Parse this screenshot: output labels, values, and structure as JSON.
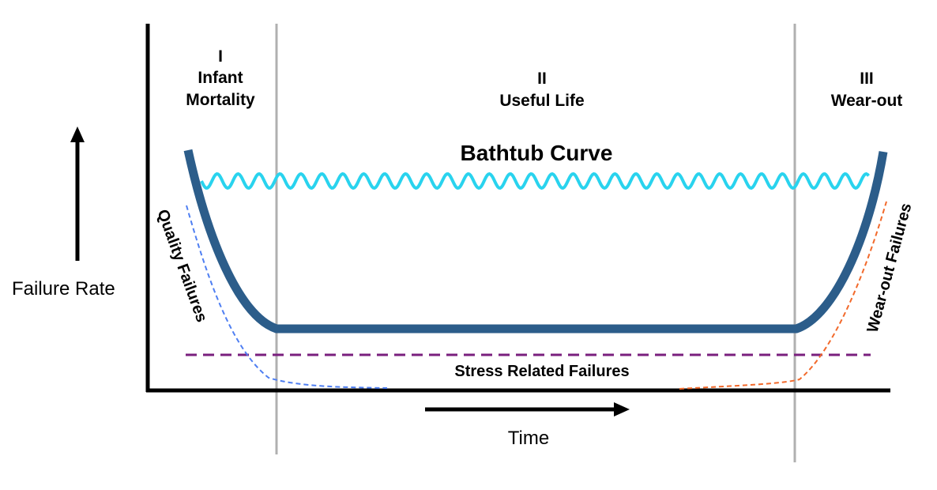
{
  "phases": [
    {
      "numeral": "I",
      "lines": [
        "Infant",
        "Mortality"
      ]
    },
    {
      "numeral": "II",
      "lines": [
        "Useful Life"
      ]
    },
    {
      "numeral": "III",
      "lines": [
        "Wear-out"
      ]
    }
  ],
  "curve_title": "Bathtub Curve",
  "y_axis_label": "Failure Rate",
  "x_axis_label": "Time",
  "labels": {
    "quality": "Quality Failures",
    "wearout": "Wear-out Failures",
    "stress": "Stress Related Failures"
  },
  "colors": {
    "bathtub_curve": "#2c5d8a",
    "wavy_line": "#29d3ee",
    "quality_failures": "#4f7ff2",
    "wearout_failures": "#f26a2c",
    "stress_failures": "#7a1f7e",
    "phase_dividers": "#b0b0b0",
    "axes": "#000000"
  }
}
